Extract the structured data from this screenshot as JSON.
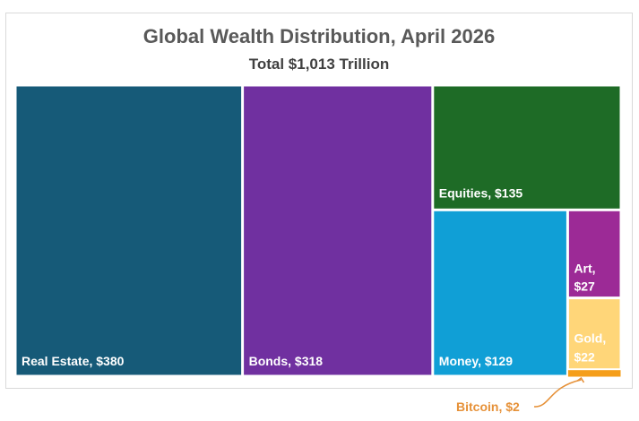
{
  "chart_data": {
    "type": "treemap",
    "title": "Global Wealth Distribution, April 2026",
    "subtitle": "Total $1,013 Trillion",
    "categories": [
      "Real Estate",
      "Bonds",
      "Equities",
      "Money",
      "Art",
      "Gold",
      "Bitcoin"
    ],
    "values": [
      380,
      318,
      135,
      129,
      27,
      22,
      2
    ],
    "labels": [
      "Real Estate, $380",
      "Bonds, $318",
      "Equities, $135",
      "Money, $129",
      "Art, $27",
      "Gold, $22",
      "Bitcoin, $2"
    ],
    "colors": [
      "#165a78",
      "#7030a0",
      "#1e6b26",
      "#109fd6",
      "#9c2a96",
      "#ffd679",
      "#f59e1a"
    ],
    "label_color": "#ffffff",
    "callout_color": "#e69138"
  }
}
